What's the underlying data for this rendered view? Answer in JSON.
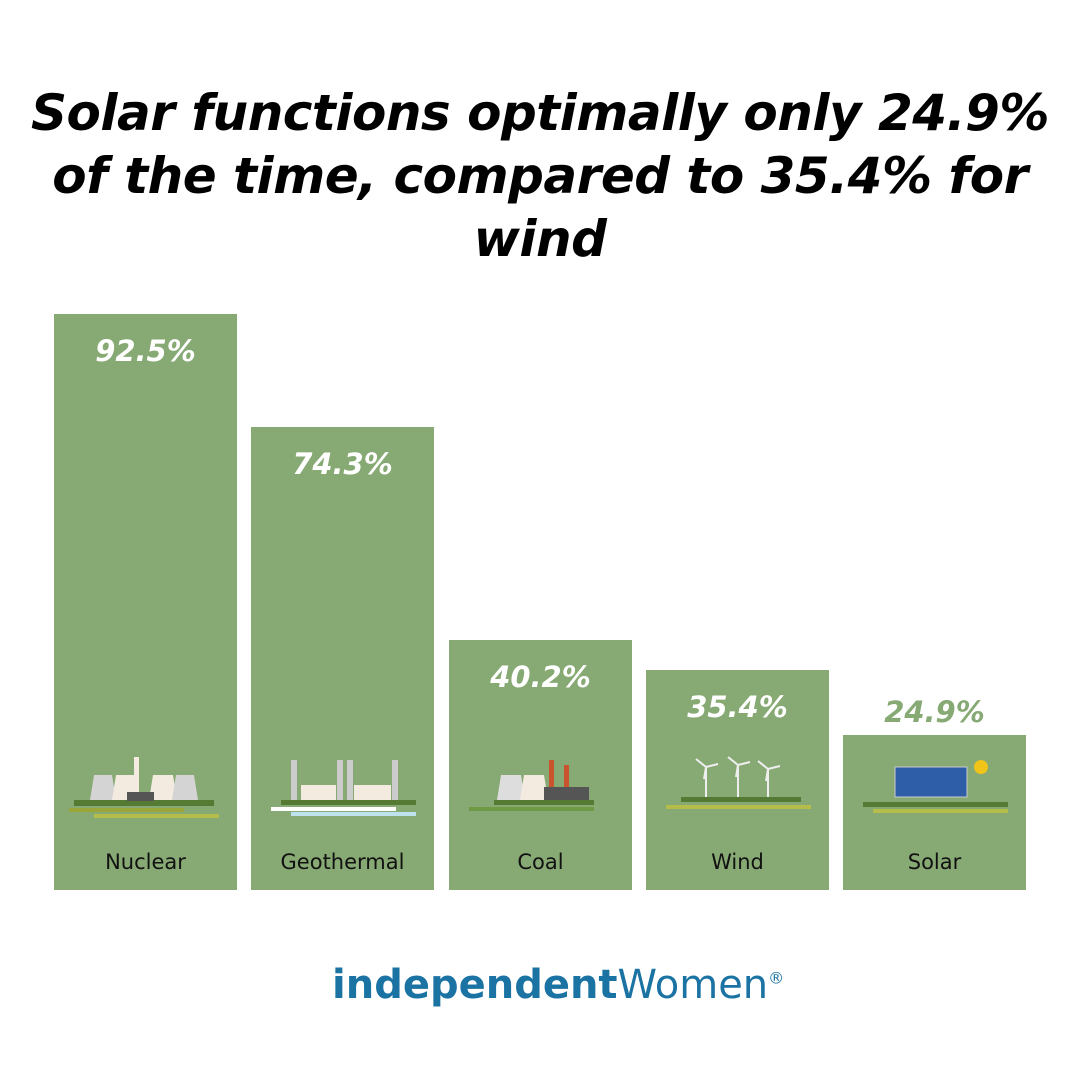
{
  "chart_data": {
    "type": "bar",
    "title": "Solar functions optimally only 24.9% of the time, compared to 35.4% for wind",
    "categories": [
      "Nuclear",
      "Geothermal",
      "Coal",
      "Wind",
      "Solar"
    ],
    "values": [
      92.5,
      74.3,
      40.2,
      35.4,
      24.9
    ],
    "value_labels": [
      "92.5%",
      "74.3%",
      "40.2%",
      "35.4%",
      "24.9%"
    ],
    "xlabel": "",
    "ylabel": "",
    "ylim": [
      0,
      92.5
    ],
    "grid": false,
    "bar_color": "#87a973",
    "icons": [
      "nuclear-plant-icon",
      "geothermal-plant-icon",
      "coal-plant-icon",
      "wind-turbines-icon",
      "solar-panels-icon"
    ]
  },
  "logo": {
    "part1": "independent",
    "part2": "Women",
    "mark": "®"
  }
}
